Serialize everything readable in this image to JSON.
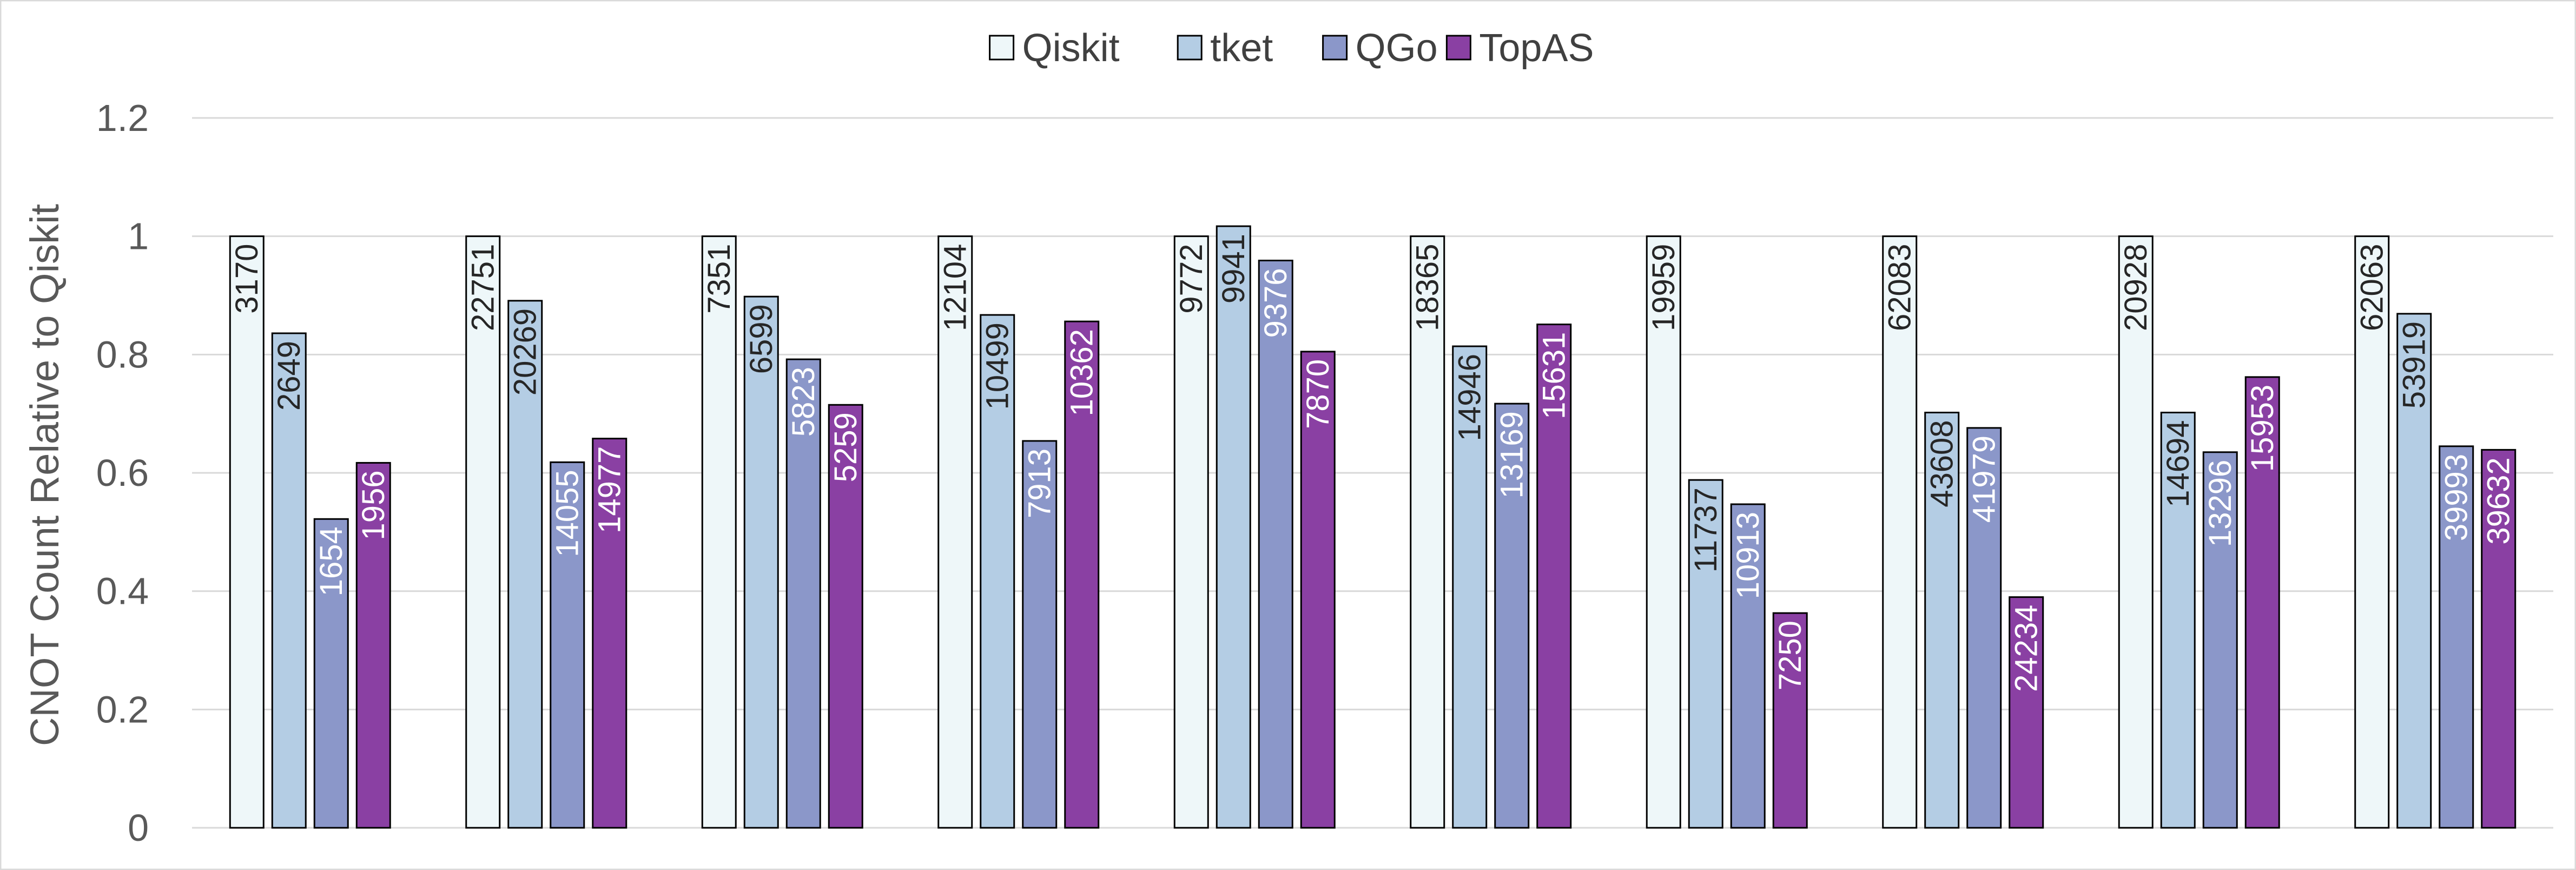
{
  "chart_data": {
    "type": "bar",
    "title": "",
    "xlabel": "",
    "ylabel": "CNOT Count Relative to Qiskit",
    "ylim": [
      0,
      1.2
    ],
    "yticks": [
      0,
      0.2,
      0.4,
      0.6,
      0.8,
      1,
      1.2
    ],
    "ytick_labels": [
      "0",
      "0.2",
      "0.4",
      "0.6",
      "0.8",
      "1",
      "1.2"
    ],
    "grid": true,
    "legend_position": "top-center",
    "categories": [
      "",
      "",
      "",
      "",
      "",
      "",
      "",
      "",
      "",
      ""
    ],
    "series": [
      {
        "name": "Qiskit",
        "color": "#eef7f9",
        "label_color": "#262626",
        "values": [
          1,
          1,
          1,
          1,
          1,
          1,
          1,
          1,
          1,
          1
        ],
        "labels": [
          "3170",
          "22751",
          "7351",
          "12104",
          "9772",
          "18365",
          "19959",
          "62083",
          "20928",
          "62063"
        ]
      },
      {
        "name": "tket",
        "color": "#b4cde4",
        "label_color": "#262626",
        "values": [
          0.836,
          0.891,
          0.898,
          0.867,
          1.017,
          0.814,
          0.588,
          0.702,
          0.702,
          0.869
        ],
        "labels": [
          "2649",
          "20269",
          "6599",
          "10499",
          "9941",
          "14946",
          "11737",
          "43608",
          "14694",
          "53919"
        ]
      },
      {
        "name": "QGo",
        "color": "#8b97c9",
        "label_color": "#ffffff",
        "values": [
          0.522,
          0.618,
          0.792,
          0.654,
          0.959,
          0.717,
          0.547,
          0.676,
          0.635,
          0.645
        ],
        "labels": [
          "1654",
          "14055",
          "5823",
          "7913",
          "9376",
          "13169",
          "10913",
          "41979",
          "13296",
          "39993"
        ]
      },
      {
        "name": "TopAS",
        "color": "#8a40a3",
        "label_color": "#ffffff",
        "values": [
          0.617,
          0.658,
          0.715,
          0.856,
          0.805,
          0.851,
          0.363,
          0.39,
          0.762,
          0.639
        ],
        "labels": [
          "1956",
          "14977",
          "5259",
          "10362",
          "7870",
          "15631",
          "7250",
          "24234",
          "15953",
          "39632"
        ]
      }
    ]
  }
}
